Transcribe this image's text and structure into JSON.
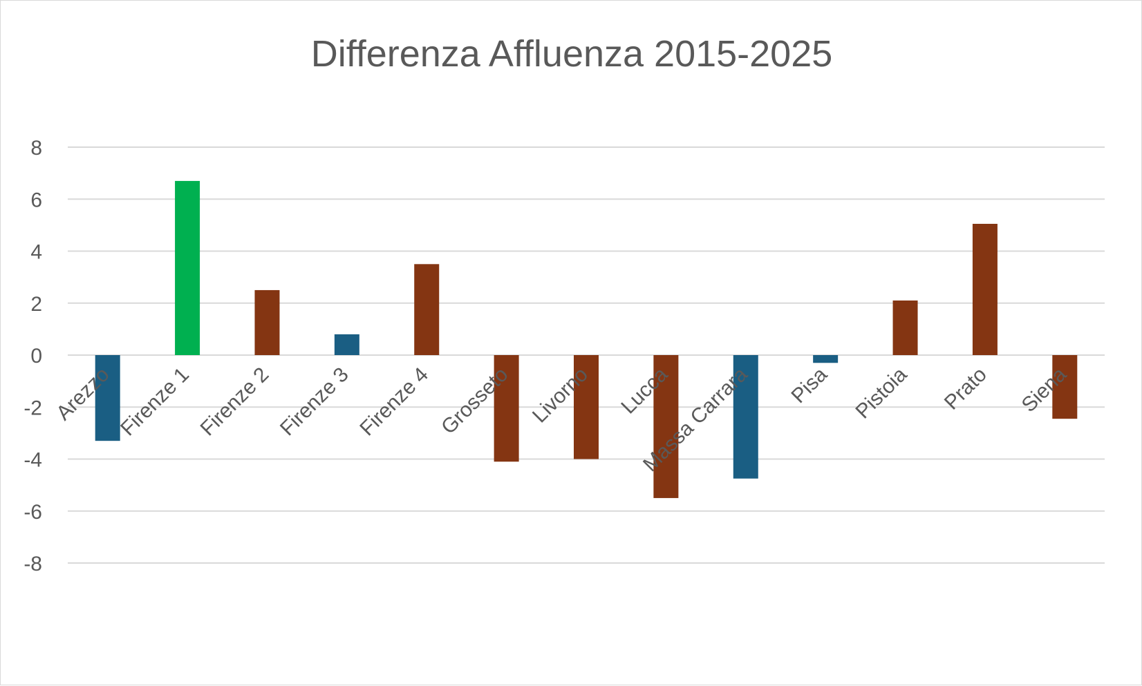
{
  "chart_data": {
    "type": "bar",
    "title": "Differenza Affluenza 2015-2025",
    "xlabel": "",
    "ylabel": "",
    "ylim": [
      -8,
      8
    ],
    "yticks": [
      8,
      6,
      4,
      2,
      0,
      -2,
      -4,
      -6,
      -8
    ],
    "grid": true,
    "legend": "none",
    "categories": [
      "Arezzo",
      "Firenze 1",
      "Firenze 2",
      "Firenze 3",
      "Firenze 4",
      "Grosseto",
      "Livorno",
      "Lucca",
      "Massa Carrara",
      "Pisa",
      "Pistoia",
      "Prato",
      "Siena"
    ],
    "values": [
      -3.3,
      6.7,
      2.5,
      0.8,
      3.5,
      -4.1,
      -4.0,
      -5.5,
      -4.75,
      -0.3,
      2.1,
      5.05,
      -2.45
    ],
    "bar_colors": [
      "#1a5e83",
      "#00b050",
      "#843512",
      "#1a5e83",
      "#843512",
      "#843512",
      "#843512",
      "#843512",
      "#1a5e83",
      "#1a5e83",
      "#843512",
      "#843512",
      "#843512"
    ]
  }
}
